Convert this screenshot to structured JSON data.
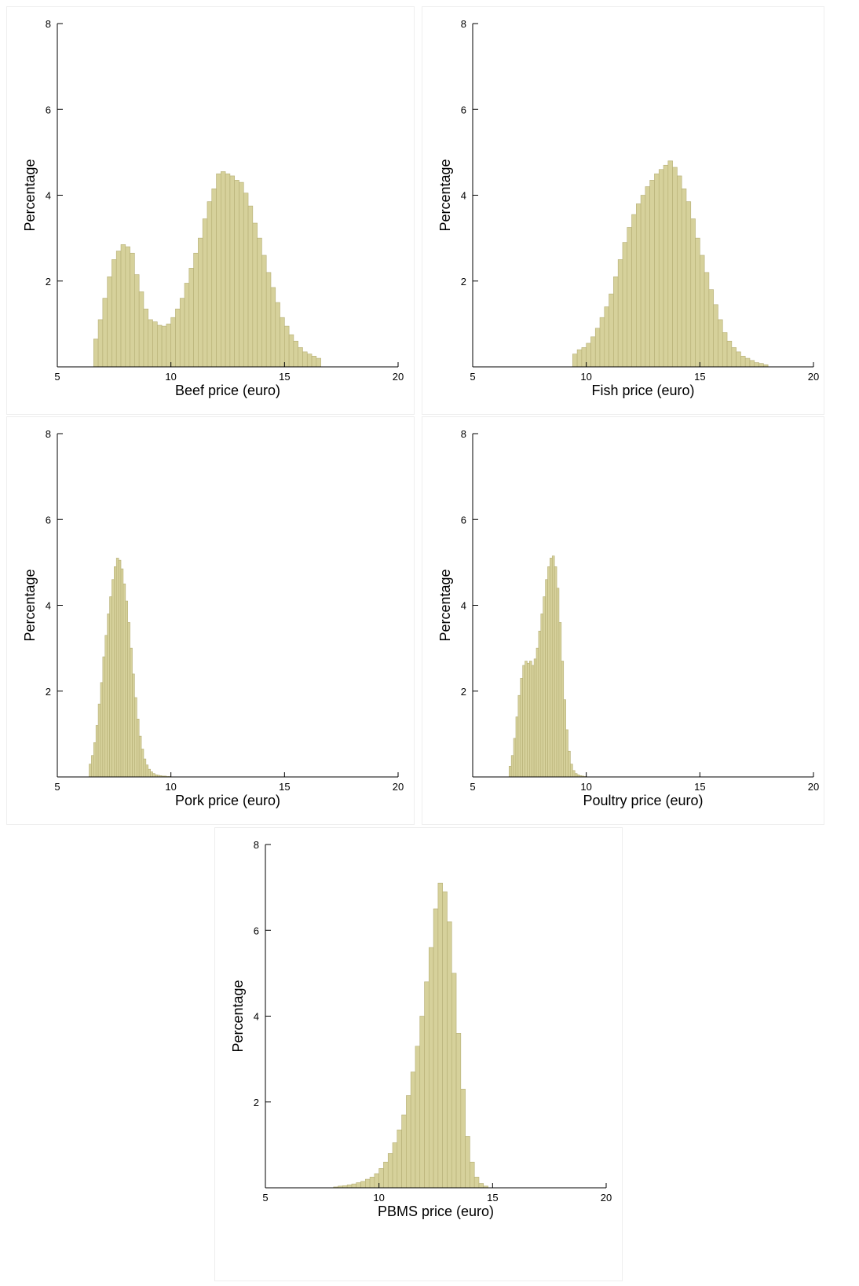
{
  "chart_data": [
    {
      "type": "histogram",
      "xlabel": "Beef price (euro)",
      "ylabel": "Percentage",
      "color": "#d6d19b",
      "bins": [
        6.6,
        6.8,
        7.0,
        7.2,
        7.4,
        7.6,
        7.8,
        8.0,
        8.2,
        8.4,
        8.6,
        8.8,
        9.0,
        9.2,
        9.4,
        9.6,
        9.8,
        10.0,
        10.2,
        10.4,
        10.6,
        10.8,
        11.0,
        11.2,
        11.4,
        11.6,
        11.8,
        12.0,
        12.2,
        12.4,
        12.6,
        12.8,
        13.0,
        13.2,
        13.4,
        13.6,
        13.8,
        14.0,
        14.2,
        14.4,
        14.6,
        14.8,
        15.0,
        15.2,
        15.4,
        15.6,
        15.8,
        16.0,
        16.2,
        16.4,
        16.6
      ],
      "values": [
        0.65,
        1.1,
        1.6,
        2.1,
        2.5,
        2.7,
        2.85,
        2.8,
        2.65,
        2.15,
        1.75,
        1.35,
        1.1,
        1.05,
        0.97,
        0.95,
        1.0,
        1.15,
        1.35,
        1.6,
        1.95,
        2.3,
        2.65,
        3.0,
        3.45,
        3.85,
        4.15,
        4.5,
        4.55,
        4.5,
        4.45,
        4.35,
        4.3,
        4.05,
        3.75,
        3.35,
        3.0,
        2.6,
        2.2,
        1.85,
        1.5,
        1.15,
        0.95,
        0.75,
        0.6,
        0.45,
        0.35,
        0.3,
        0.25,
        0.2
      ],
      "xlim": [
        5,
        20
      ],
      "ylim": [
        0,
        8
      ],
      "xticks": [
        5,
        10,
        15,
        20
      ],
      "yticks": [
        2,
        4,
        6,
        8
      ]
    },
    {
      "type": "histogram",
      "xlabel": "Fish price (euro)",
      "ylabel": "Percentage",
      "color": "#d6d19b",
      "bins": [
        9.4,
        9.6,
        9.8,
        10.0,
        10.2,
        10.4,
        10.6,
        10.8,
        11.0,
        11.2,
        11.4,
        11.6,
        11.8,
        12.0,
        12.2,
        12.4,
        12.6,
        12.8,
        13.0,
        13.2,
        13.4,
        13.6,
        13.8,
        14.0,
        14.2,
        14.4,
        14.6,
        14.8,
        15.0,
        15.2,
        15.4,
        15.6,
        15.8,
        16.0,
        16.2,
        16.4,
        16.6,
        16.8,
        17.0,
        17.2,
        17.4,
        17.6,
        17.8,
        18.0
      ],
      "values": [
        0.3,
        0.4,
        0.45,
        0.55,
        0.7,
        0.9,
        1.15,
        1.4,
        1.7,
        2.1,
        2.5,
        2.9,
        3.25,
        3.55,
        3.8,
        4.0,
        4.2,
        4.35,
        4.5,
        4.6,
        4.7,
        4.8,
        4.65,
        4.45,
        4.15,
        3.85,
        3.45,
        3.0,
        2.6,
        2.2,
        1.8,
        1.45,
        1.1,
        0.8,
        0.6,
        0.45,
        0.35,
        0.25,
        0.2,
        0.15,
        0.1,
        0.08,
        0.05
      ],
      "xlim": [
        5,
        20
      ],
      "ylim": [
        0,
        8
      ],
      "xticks": [
        5,
        10,
        15,
        20
      ],
      "yticks": [
        2,
        4,
        6,
        8
      ]
    },
    {
      "type": "histogram",
      "xlabel": "Pork price (euro)",
      "ylabel": "Percentage",
      "color": "#d6d19b",
      "bins": [
        6.4,
        6.5,
        6.6,
        6.7,
        6.8,
        6.9,
        7.0,
        7.1,
        7.2,
        7.3,
        7.4,
        7.5,
        7.6,
        7.7,
        7.8,
        7.9,
        8.0,
        8.1,
        8.2,
        8.3,
        8.4,
        8.5,
        8.6,
        8.7,
        8.8,
        8.9,
        9.0,
        9.1,
        9.2,
        9.3,
        9.4,
        9.5,
        9.6,
        9.7,
        9.8,
        9.9,
        10.0
      ],
      "values": [
        0.3,
        0.5,
        0.8,
        1.2,
        1.7,
        2.2,
        2.8,
        3.3,
        3.8,
        4.2,
        4.6,
        4.9,
        5.1,
        5.05,
        4.85,
        4.5,
        4.1,
        3.6,
        3.0,
        2.4,
        1.85,
        1.35,
        0.95,
        0.65,
        0.42,
        0.28,
        0.18,
        0.12,
        0.08,
        0.05,
        0.04,
        0.03,
        0.02,
        0.02,
        0.01,
        0.01
      ],
      "xlim": [
        5,
        20
      ],
      "ylim": [
        0,
        8
      ],
      "xticks": [
        5,
        10,
        15,
        20
      ],
      "yticks": [
        2,
        4,
        6,
        8
      ]
    },
    {
      "type": "histogram",
      "xlabel": "Poultry price (euro)",
      "ylabel": "Percentage",
      "color": "#d6d19b",
      "bins": [
        6.6,
        6.7,
        6.8,
        6.9,
        7.0,
        7.1,
        7.2,
        7.3,
        7.4,
        7.5,
        7.6,
        7.7,
        7.8,
        7.9,
        8.0,
        8.1,
        8.2,
        8.3,
        8.4,
        8.5,
        8.6,
        8.7,
        8.8,
        8.9,
        9.0,
        9.1,
        9.2,
        9.3,
        9.4,
        9.5,
        9.6,
        9.7,
        9.8,
        9.9,
        10.0
      ],
      "values": [
        0.25,
        0.5,
        0.9,
        1.4,
        1.9,
        2.3,
        2.6,
        2.7,
        2.65,
        2.7,
        2.6,
        2.75,
        3.0,
        3.4,
        3.8,
        4.2,
        4.6,
        4.9,
        5.1,
        5.15,
        4.9,
        4.4,
        3.6,
        2.7,
        1.8,
        1.1,
        0.6,
        0.3,
        0.15,
        0.08,
        0.05,
        0.03,
        0.02,
        0.01
      ],
      "xlim": [
        5,
        20
      ],
      "ylim": [
        0,
        8
      ],
      "xticks": [
        5,
        10,
        15,
        20
      ],
      "yticks": [
        2,
        4,
        6,
        8
      ]
    },
    {
      "type": "histogram",
      "xlabel": "PBMS price (euro)",
      "ylabel": "Percentage",
      "color": "#d6d19b",
      "bins": [
        8.0,
        8.2,
        8.4,
        8.6,
        8.8,
        9.0,
        9.2,
        9.4,
        9.6,
        9.8,
        10.0,
        10.2,
        10.4,
        10.6,
        10.8,
        11.0,
        11.2,
        11.4,
        11.6,
        11.8,
        12.0,
        12.2,
        12.4,
        12.6,
        12.8,
        13.0,
        13.2,
        13.4,
        13.6,
        13.8,
        14.0,
        14.2,
        14.4,
        14.6,
        14.8
      ],
      "values": [
        0.02,
        0.04,
        0.05,
        0.07,
        0.09,
        0.12,
        0.15,
        0.2,
        0.25,
        0.33,
        0.45,
        0.6,
        0.8,
        1.05,
        1.35,
        1.7,
        2.15,
        2.7,
        3.3,
        4.0,
        4.8,
        5.6,
        6.5,
        7.1,
        6.9,
        6.2,
        5.0,
        3.6,
        2.3,
        1.2,
        0.6,
        0.25,
        0.1,
        0.04
      ],
      "xlim": [
        5,
        20
      ],
      "ylim": [
        0,
        8
      ],
      "xticks": [
        5,
        10,
        15,
        20
      ],
      "yticks": [
        2,
        4,
        6,
        8
      ]
    }
  ]
}
